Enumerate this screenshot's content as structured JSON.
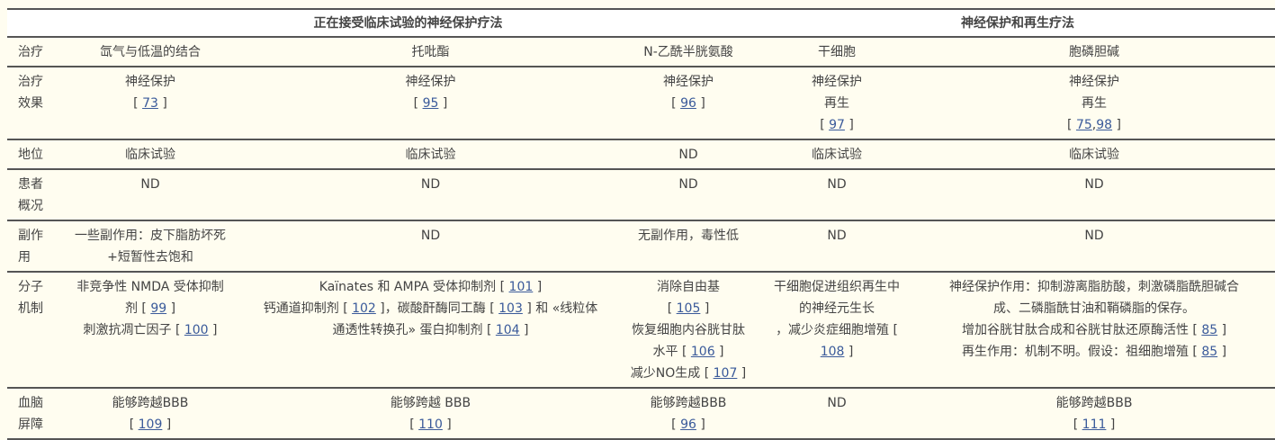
{
  "header": {
    "group1": "正在接受临床试验的神经保护疗法",
    "group2": "神经保护和再生疗法"
  },
  "colors": {
    "link": "#3a5a9a",
    "border": "#555555",
    "background": "#fffdf0"
  },
  "rows": [
    {
      "label": [
        "治疗"
      ],
      "cells": [
        [
          [
            "氙气与低温的结合"
          ]
        ],
        [
          [
            "托吡酯"
          ]
        ],
        [
          [
            "N-乙酰半胱氨酸"
          ]
        ],
        [
          [
            "干细胞"
          ]
        ],
        [
          [
            "胞磷胆碱"
          ]
        ]
      ]
    },
    {
      "label": [
        "治疗",
        "效果"
      ],
      "cells": [
        [
          [
            "神经保护"
          ],
          [
            {
              "refs": [
                "73"
              ]
            }
          ]
        ],
        [
          [
            "神经保护"
          ],
          [
            {
              "refs": [
                "95"
              ]
            }
          ]
        ],
        [
          [
            "神经保护"
          ],
          [
            {
              "refs": [
                "96"
              ]
            }
          ]
        ],
        [
          [
            "神经保护"
          ],
          [
            "再生"
          ],
          [
            {
              "refs": [
                "97"
              ]
            }
          ]
        ],
        [
          [
            "神经保护"
          ],
          [
            "再生"
          ],
          [
            {
              "refs": [
                "75",
                "98"
              ]
            }
          ]
        ]
      ]
    },
    {
      "label": [
        "地位"
      ],
      "cells": [
        [
          [
            "临床试验"
          ]
        ],
        [
          [
            "临床试验"
          ]
        ],
        [
          [
            "ND"
          ]
        ],
        [
          [
            "临床试验"
          ]
        ],
        [
          [
            "临床试验"
          ]
        ]
      ]
    },
    {
      "label": [
        "患者",
        "概况"
      ],
      "cells": [
        [
          [
            "ND"
          ]
        ],
        [
          [
            "ND"
          ]
        ],
        [
          [
            "ND"
          ]
        ],
        [
          [
            "ND"
          ]
        ],
        [
          [
            "ND"
          ]
        ]
      ]
    },
    {
      "label": [
        "副作",
        "用"
      ],
      "cells": [
        [
          [
            "一些副作用：皮下脂肪坏死"
          ],
          [
            "+短暂性去饱和"
          ]
        ],
        [
          [
            "ND"
          ]
        ],
        [
          [
            "无副作用，毒性低"
          ]
        ],
        [
          [
            "ND"
          ]
        ],
        [
          [
            "ND"
          ]
        ]
      ]
    },
    {
      "label": [
        "分子",
        "机制"
      ],
      "cells": [
        [
          [
            "非竞争性 NMDA 受体抑制"
          ],
          [
            "剂 ",
            {
              "refs": [
                "99"
              ]
            }
          ],
          [
            "刺激抗凋亡因子 ",
            {
              "refs": [
                "100"
              ]
            }
          ]
        ],
        [
          [
            "Kaïnates 和 AMPA 受体抑制剂 ",
            {
              "refs": [
                "101"
              ]
            }
          ],
          [
            "钙通道抑制剂 ",
            {
              "refs": [
                "102"
              ]
            },
            "，碳酸酐酶同工酶 ",
            {
              "refs": [
                "103"
              ]
            },
            " 和 «线粒体"
          ],
          [
            "通透性转换孔» 蛋白抑制剂 ",
            {
              "refs": [
                "104"
              ]
            }
          ]
        ],
        [
          [
            "消除自由基"
          ],
          [
            {
              "refs": [
                "105"
              ]
            }
          ],
          [
            "恢复细胞内谷胱甘肽"
          ],
          [
            "水平 ",
            {
              "refs": [
                "106"
              ]
            }
          ],
          [
            "减少NO生成 ",
            {
              "refs": [
                "107"
              ]
            }
          ]
        ],
        [
          [
            "干细胞促进组织再生中"
          ],
          [
            "的神经元生长"
          ],
          [
            "，减少炎症细胞增殖 ["
          ],
          [
            {
              "refsOpenless": [
                "108"
              ]
            }
          ]
        ],
        [
          [
            "神经保护作用：抑制游离脂肪酸，刺激磷脂酰胆碱合"
          ],
          [
            "成、二磷脂酰甘油和鞘磷脂的保存。"
          ],
          [
            "增加谷胱甘肽合成和谷胱甘肽还原酶活性 ",
            {
              "refs": [
                "85"
              ]
            }
          ],
          [
            "再生作用：机制不明。假设：祖细胞增殖 ",
            {
              "refs": [
                "85"
              ]
            }
          ]
        ]
      ]
    },
    {
      "label": [
        "血脑",
        "屏障"
      ],
      "cells": [
        [
          [
            "能够跨越BBB"
          ],
          [
            {
              "refs": [
                "109"
              ]
            }
          ]
        ],
        [
          [
            "能够跨越 BBB"
          ],
          [
            {
              "refs": [
                "110"
              ]
            }
          ]
        ],
        [
          [
            "能够跨越BBB"
          ],
          [
            {
              "refs": [
                "96"
              ]
            }
          ]
        ],
        [
          [
            "ND"
          ]
        ],
        [
          [
            "能够跨越BBB"
          ],
          [
            {
              "refs": [
                "111"
              ]
            }
          ]
        ]
      ]
    }
  ]
}
